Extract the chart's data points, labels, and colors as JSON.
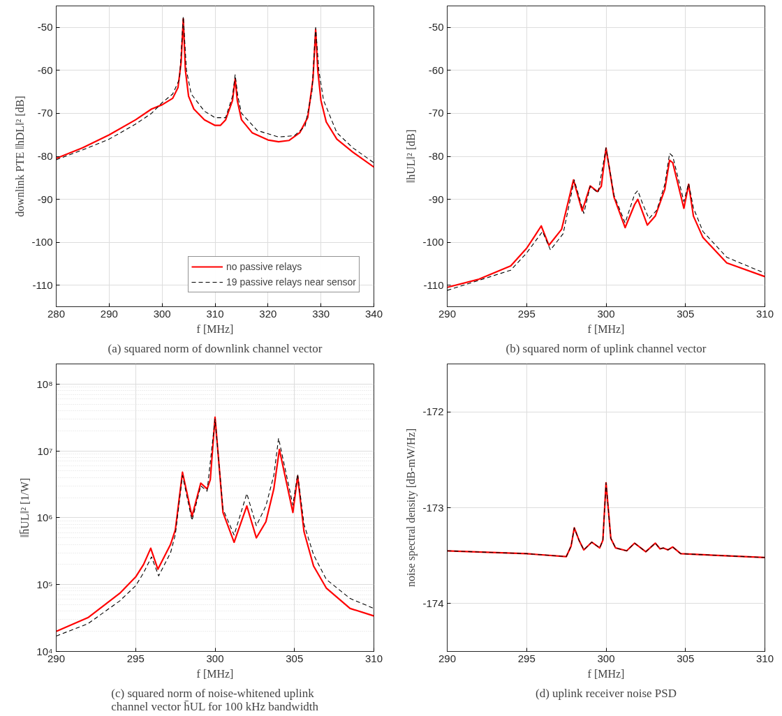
{
  "chart_data": [
    {
      "type": "line",
      "xlabel": "f [MHz]",
      "ylabel": "downlink PTE ‖hDL‖² [dB]",
      "annotations": [
        "(a) squared norm of downlink channel vector"
      ],
      "xlim": [
        280,
        340
      ],
      "ylim": [
        -115,
        -45
      ],
      "xticks": [
        280,
        290,
        300,
        310,
        320,
        330,
        340
      ],
      "yticks": [
        -110,
        -100,
        -90,
        -80,
        -70,
        -60,
        -50
      ],
      "grid": true,
      "legend": "bottom right",
      "series": [
        {
          "name": "no passive relays",
          "color": "#ff0000",
          "line_style": "solid",
          "x": [
            280,
            285,
            290,
            295,
            298,
            300,
            302,
            303,
            303.6,
            304,
            304.4,
            305,
            306,
            308,
            310,
            311,
            312,
            313.3,
            313.8,
            314.2,
            315,
            317,
            320,
            322,
            324,
            326,
            327.5,
            328.5,
            329,
            329.4,
            330,
            331,
            333,
            336,
            340
          ],
          "values": [
            -80.5,
            -78,
            -75,
            -71.5,
            -69,
            -68,
            -66.5,
            -64,
            -58,
            -48,
            -60,
            -66,
            -69,
            -71.5,
            -72.8,
            -72.8,
            -71.5,
            -67,
            -62,
            -67,
            -71.5,
            -74.5,
            -76.2,
            -76.6,
            -76.3,
            -74.5,
            -71,
            -62,
            -50.5,
            -60,
            -67,
            -72,
            -76,
            -79,
            -82.5
          ]
        },
        {
          "name": "19 passive relays near sensor",
          "color": "#000000",
          "line_style": "dashed",
          "x": [
            280,
            285,
            290,
            295,
            298,
            300,
            302,
            303.3,
            304,
            304.6,
            305.5,
            308,
            310,
            312,
            313.3,
            313.8,
            314.3,
            315,
            318,
            322,
            325,
            327,
            328.3,
            329,
            329.6,
            330.5,
            333,
            336,
            340
          ],
          "values": [
            -80.8,
            -78.5,
            -76,
            -72.5,
            -70,
            -67.5,
            -65.5,
            -62,
            -47.5,
            -60,
            -65.5,
            -69.5,
            -71,
            -71,
            -66,
            -61,
            -66,
            -70,
            -74,
            -75.5,
            -75.2,
            -73,
            -65,
            -50,
            -60,
            -67,
            -74.5,
            -78,
            -81.5
          ]
        }
      ]
    },
    {
      "type": "line",
      "xlabel": "f [MHz]",
      "ylabel": "‖hUL‖² [dB]",
      "annotations": [
        "(b) squared norm of uplink channel vector"
      ],
      "xlim": [
        290,
        310
      ],
      "ylim": [
        -115,
        -45
      ],
      "xticks": [
        290,
        295,
        300,
        305,
        310
      ],
      "yticks": [
        -110,
        -100,
        -90,
        -80,
        -70,
        -60,
        -50
      ],
      "grid": true,
      "series": [
        {
          "color": "#ff0000",
          "line_style": "solid",
          "x": [
            290,
            292,
            294,
            295,
            295.5,
            295.92,
            296.4,
            297.2,
            297.95,
            298.5,
            299.0,
            299.45,
            299.7,
            300,
            300.5,
            301.2,
            301.8,
            302.0,
            302.6,
            303.1,
            303.7,
            304.0,
            304.2,
            304.9,
            305.2,
            305.5,
            306.1,
            307.6,
            310
          ],
          "values": [
            -110.5,
            -108.6,
            -105.5,
            -101.4,
            -98.6,
            -96.2,
            -100.7,
            -97,
            -85.5,
            -92.7,
            -86.9,
            -88.2,
            -87,
            -78.1,
            -89.5,
            -96.6,
            -91.2,
            -90,
            -96,
            -93.9,
            -87.7,
            -80.9,
            -81.5,
            -92.1,
            -86.5,
            -93.9,
            -98.9,
            -104.8,
            -108
          ]
        },
        {
          "color": "#000000",
          "line_style": "dashed",
          "x": [
            290,
            294,
            295,
            295.5,
            296.0,
            296.5,
            297.3,
            298,
            298.6,
            299,
            299.5,
            300,
            300.5,
            301.2,
            301.8,
            302.0,
            302.3,
            302.7,
            303.2,
            303.7,
            304.0,
            304.2,
            304.9,
            305.2,
            305.5,
            306.1,
            307.6,
            310
          ],
          "values": [
            -111.2,
            -106.5,
            -102.5,
            -100,
            -97.5,
            -101.8,
            -98,
            -85.5,
            -93.3,
            -87,
            -88.5,
            -78,
            -89,
            -95.5,
            -88.8,
            -88,
            -91,
            -94.5,
            -92.5,
            -86.5,
            -79.3,
            -80,
            -90.5,
            -86.3,
            -92,
            -97.5,
            -103.5,
            -107.2
          ]
        }
      ]
    },
    {
      "type": "line",
      "xlabel": "f [MHz]",
      "ylabel": "‖h̄UL‖² [1/W]",
      "annotations": [
        "(c) squared norm of noise-whitened uplink\nchannel vector h̄UL for 100 kHz bandwidth"
      ],
      "log": "y",
      "xlim": [
        290,
        310
      ],
      "ylim": [
        10000,
        200000000
      ],
      "xticks": [
        290,
        295,
        300,
        305,
        310
      ],
      "yticks": [
        {
          "value": 10000,
          "label": "10⁴"
        },
        {
          "value": 100000,
          "label": "10⁵"
        },
        {
          "value": 1000000,
          "label": "10⁶"
        },
        {
          "value": 10000000,
          "label": "10⁷"
        },
        {
          "value": 100000000,
          "label": "10⁸"
        }
      ],
      "grid": true,
      "series": [
        {
          "color": "#ff0000",
          "line_style": "solid",
          "x": [
            290,
            292,
            294,
            295,
            295.5,
            295.95,
            296.4,
            297.2,
            297.5,
            297.95,
            298.55,
            299.1,
            299.5,
            299.7,
            300,
            300.5,
            301.2,
            302.0,
            302.6,
            303.2,
            303.7,
            304.05,
            304.9,
            305.2,
            305.6,
            306.2,
            307,
            308.5,
            310
          ],
          "values": [
            20000,
            32000,
            74000,
            130000,
            200000,
            350000,
            170000,
            400000,
            660000,
            4800000,
            1050000,
            3300000,
            2700000,
            3700000,
            32000000,
            1200000,
            430000,
            1500000,
            500000,
            870000,
            2700000,
            10500000,
            1200000,
            4200000,
            620000,
            190000,
            89000,
            44000,
            34000
          ]
        },
        {
          "color": "#000000",
          "line_style": "dashed",
          "x": [
            290,
            292,
            294,
            295,
            295.5,
            296.0,
            296.45,
            297.2,
            297.5,
            297.95,
            298.55,
            299.1,
            299.5,
            300,
            300.5,
            301.2,
            302.0,
            302.6,
            303.2,
            303.7,
            304.0,
            304.9,
            305.2,
            305.6,
            306.2,
            307,
            308.5,
            310
          ],
          "values": [
            17000,
            26000,
            57000,
            96000,
            150000,
            260000,
            135000,
            300000,
            560000,
            4300000,
            910000,
            3000000,
            2500000,
            30000000,
            1350000,
            550000,
            2300000,
            760000,
            1500000,
            4300000,
            15500000,
            1550000,
            4500000,
            800000,
            280000,
            120000,
            62000,
            44000
          ]
        }
      ]
    },
    {
      "type": "line",
      "xlabel": "f [MHz]",
      "ylabel": "noise spectral density [dB-mW/Hz]",
      "annotations": [
        "(d) uplink receiver noise PSD"
      ],
      "xlim": [
        290,
        310
      ],
      "ylim": [
        -174.5,
        -171.5
      ],
      "xticks": [
        290,
        295,
        300,
        305,
        310
      ],
      "yticks": [
        -174,
        -173,
        -172
      ],
      "grid": true,
      "series": [
        {
          "color": "#ff0000",
          "line_style": "solid",
          "x": [
            290,
            295,
            297.5,
            297.8,
            298.0,
            298.3,
            298.6,
            299.1,
            299.6,
            299.8,
            300.0,
            300.3,
            300.6,
            301.3,
            301.8,
            302.5,
            303.1,
            303.4,
            303.6,
            303.9,
            304.2,
            304.7,
            310
          ],
          "values": [
            -173.45,
            -173.48,
            -173.51,
            -173.4,
            -173.21,
            -173.34,
            -173.44,
            -173.36,
            -173.42,
            -173.34,
            -172.74,
            -173.32,
            -173.42,
            -173.45,
            -173.37,
            -173.46,
            -173.37,
            -173.43,
            -173.42,
            -173.44,
            -173.41,
            -173.48,
            -173.52
          ]
        },
        {
          "color": "#000000",
          "line_style": "dashed",
          "x": [
            290,
            295,
            297.5,
            297.8,
            298.0,
            298.3,
            298.6,
            299.1,
            299.6,
            299.8,
            300.0,
            300.3,
            300.6,
            301.3,
            301.8,
            302.5,
            303.1,
            303.4,
            303.6,
            303.9,
            304.2,
            304.7,
            310
          ],
          "values": [
            -173.45,
            -173.48,
            -173.51,
            -173.4,
            -173.21,
            -173.34,
            -173.44,
            -173.36,
            -173.42,
            -173.34,
            -172.74,
            -173.32,
            -173.42,
            -173.45,
            -173.37,
            -173.46,
            -173.37,
            -173.43,
            -173.42,
            -173.44,
            -173.41,
            -173.48,
            -173.52
          ]
        }
      ]
    }
  ]
}
